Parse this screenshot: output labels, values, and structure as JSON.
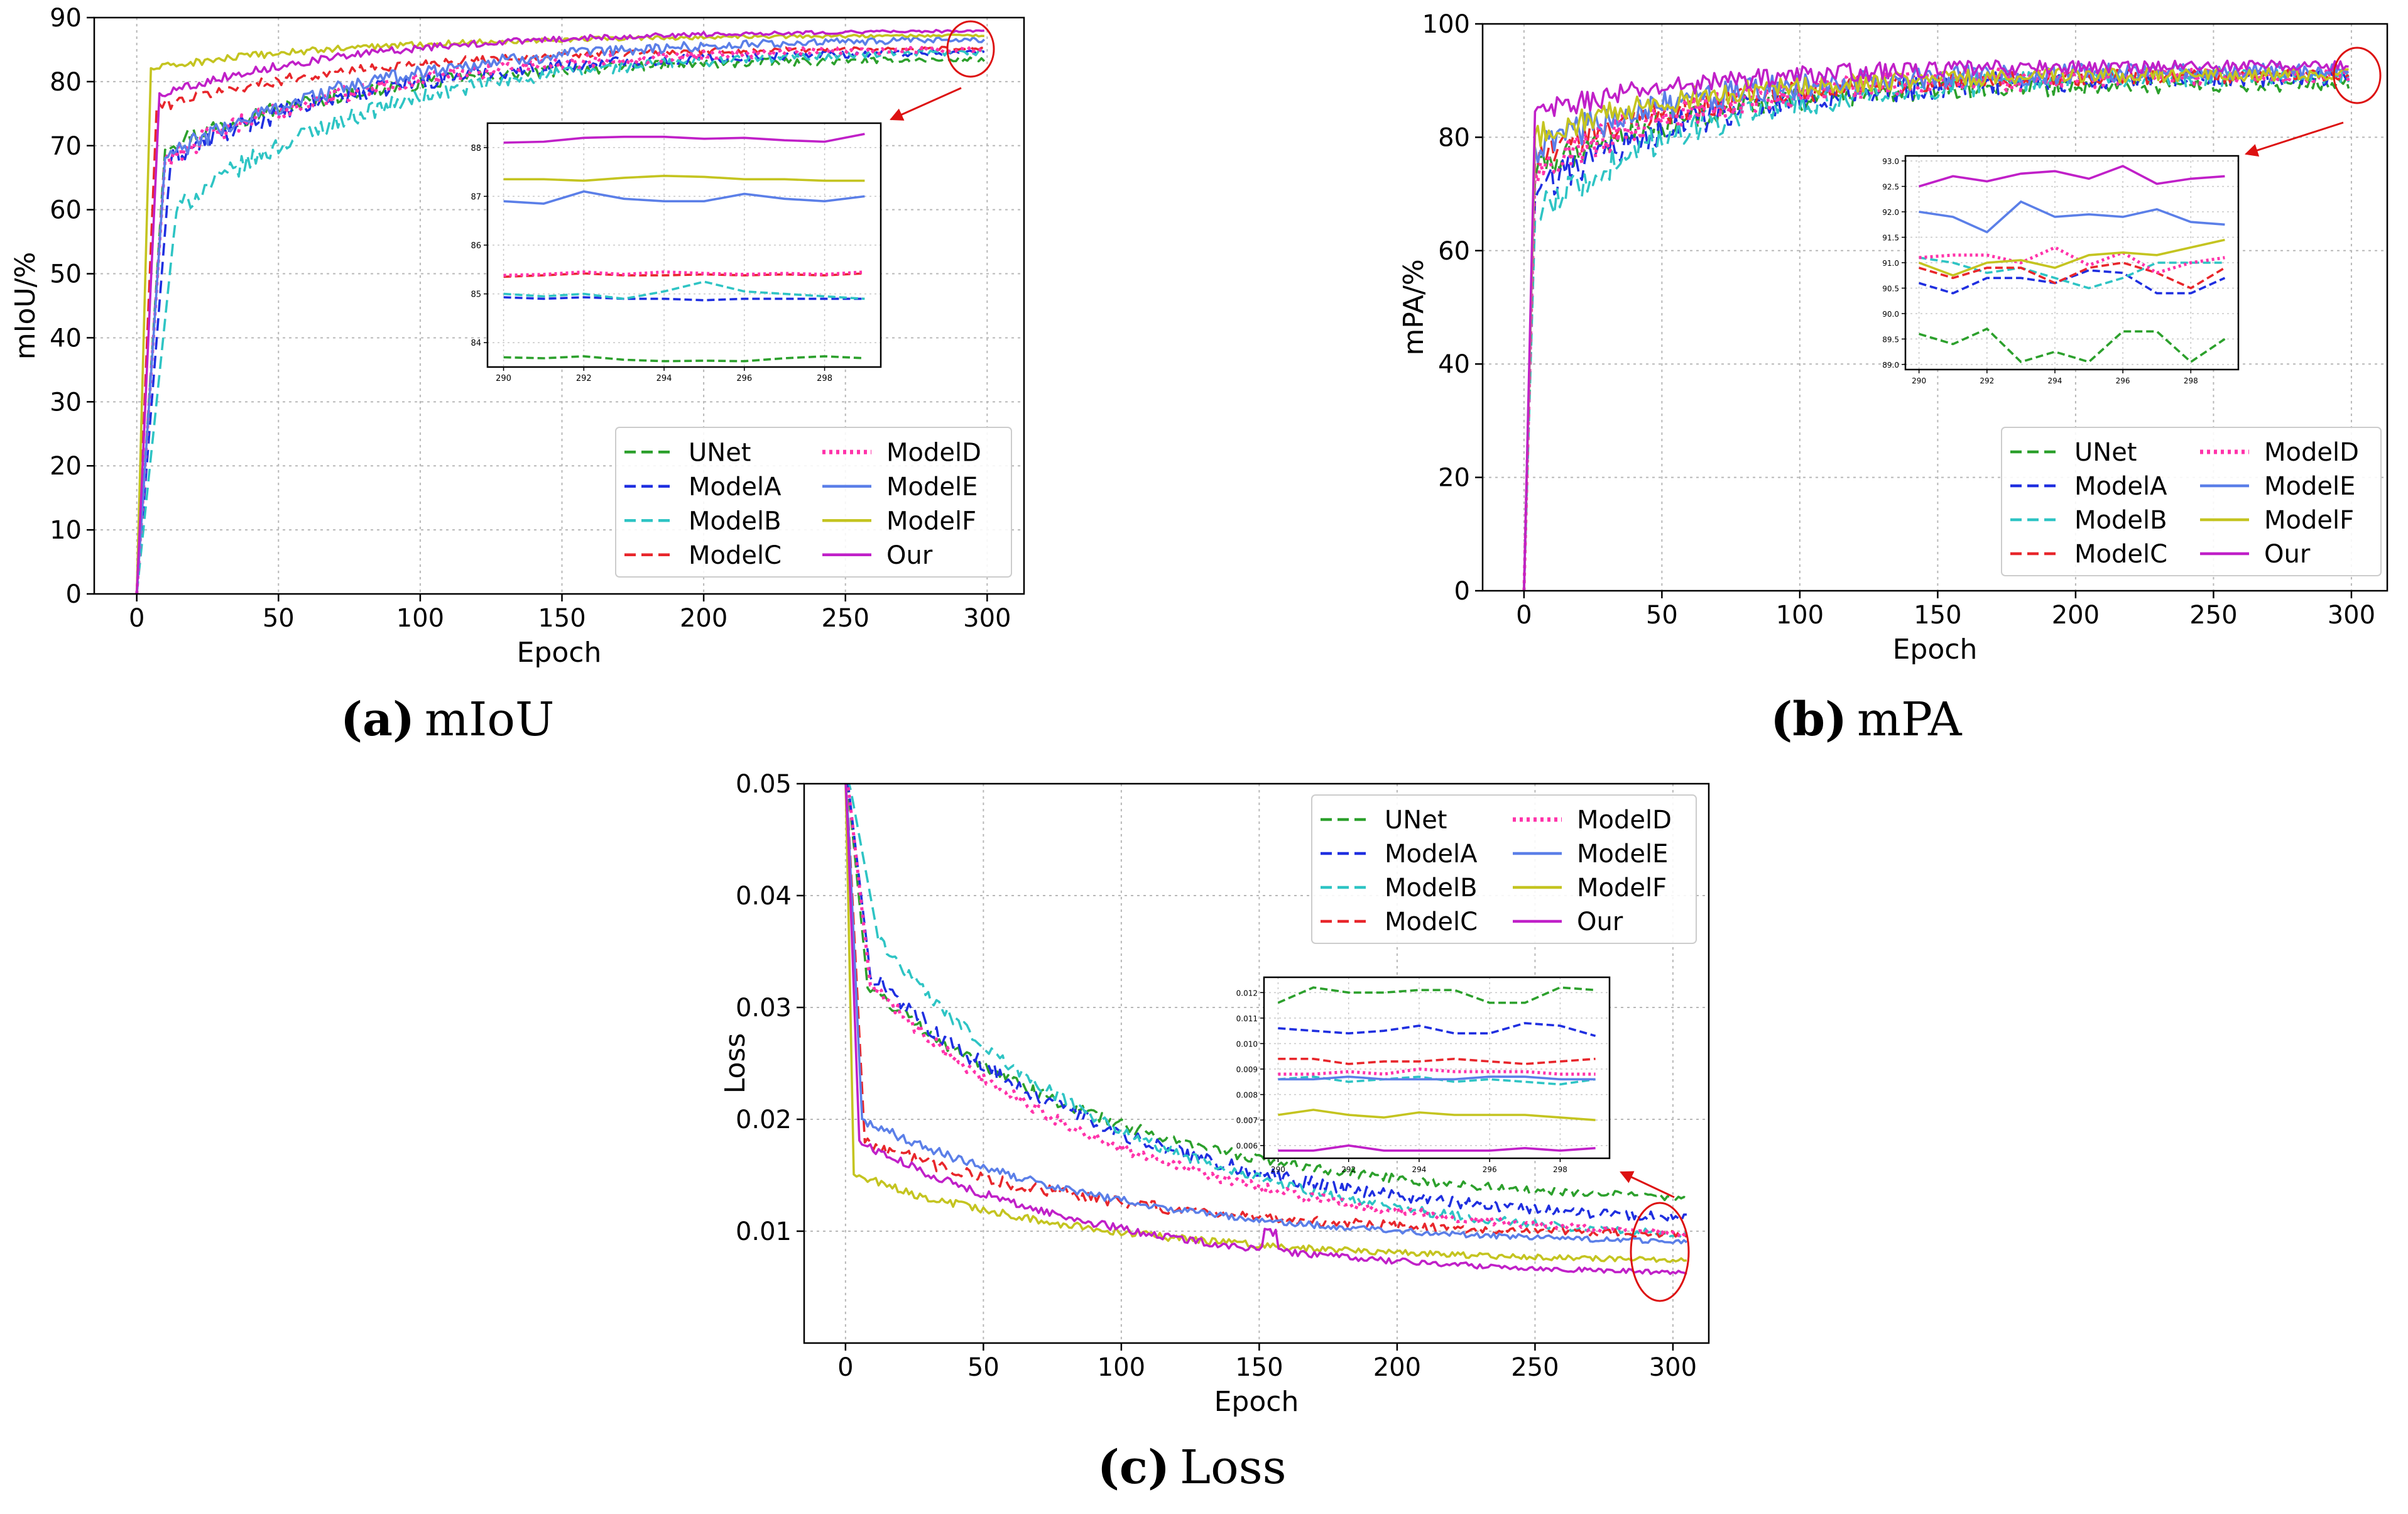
{
  "palette": {
    "UNet": "#2ca02c",
    "ModelA": "#1f2fe0",
    "ModelB": "#2ec4c4",
    "ModelC": "#e8262b",
    "ModelD": "#ff33aa",
    "ModelE": "#5b7fe8",
    "ModelF": "#c4c420",
    "Our": "#c020c8",
    "highlight": "#dd1111"
  },
  "legend_left_col": [
    "UNet",
    "ModelA",
    "ModelB",
    "ModelC"
  ],
  "legend_right_col": [
    "ModelD",
    "ModelE",
    "ModelF",
    "Our"
  ],
  "chart_data": [
    {
      "id": "a",
      "type": "line",
      "caption_letter": "(a)",
      "caption_text": "mIoU",
      "xlabel": "Epoch",
      "ylabel": "mIoU/%",
      "xlim": [
        -15,
        313
      ],
      "ylim": [
        0,
        90
      ],
      "xticks": [
        0,
        50,
        100,
        150,
        200,
        250,
        300
      ],
      "yticks": [
        0,
        10,
        20,
        30,
        40,
        50,
        60,
        70,
        80,
        90
      ],
      "series_final": [
        {
          "name": "UNet",
          "value": 83.7
        },
        {
          "name": "ModelA",
          "value": 84.9
        },
        {
          "name": "ModelB",
          "value": 85.0
        },
        {
          "name": "ModelC",
          "value": 85.4
        },
        {
          "name": "ModelD",
          "value": 85.4
        },
        {
          "name": "ModelE",
          "value": 86.9
        },
        {
          "name": "ModelF",
          "value": 87.3
        },
        {
          "name": "Our",
          "value": 88.1
        }
      ],
      "inset": {
        "xlim": [
          289.6,
          299.4
        ],
        "ylim": [
          83.5,
          88.5
        ],
        "xticks": [
          290,
          292,
          294,
          296,
          298
        ],
        "yticks": [
          84,
          85,
          86,
          87,
          88
        ],
        "x": [
          290,
          291,
          292,
          293,
          294,
          295,
          296,
          297,
          298,
          299
        ],
        "series": [
          {
            "name": "UNet",
            "values": [
              83.7,
              83.68,
              83.72,
              83.65,
              83.62,
              83.63,
              83.62,
              83.68,
              83.72,
              83.68
            ]
          },
          {
            "name": "ModelA",
            "values": [
              84.93,
              84.9,
              84.93,
              84.9,
              84.9,
              84.87,
              84.9,
              84.9,
              84.9,
              84.9
            ]
          },
          {
            "name": "ModelB",
            "values": [
              85.0,
              84.95,
              85.0,
              84.9,
              85.05,
              85.25,
              85.05,
              85.0,
              84.95,
              84.9
            ]
          },
          {
            "name": "ModelC",
            "values": [
              85.35,
              85.38,
              85.42,
              85.38,
              85.38,
              85.4,
              85.38,
              85.4,
              85.38,
              85.42
            ]
          },
          {
            "name": "ModelD",
            "values": [
              85.38,
              85.4,
              85.45,
              85.4,
              85.45,
              85.42,
              85.4,
              85.42,
              85.4,
              85.45
            ]
          },
          {
            "name": "ModelE",
            "values": [
              86.9,
              86.85,
              87.1,
              86.95,
              86.9,
              86.9,
              87.05,
              86.95,
              86.9,
              87.0
            ]
          },
          {
            "name": "ModelF",
            "values": [
              87.35,
              87.35,
              87.32,
              87.38,
              87.42,
              87.4,
              87.35,
              87.35,
              87.32,
              87.32
            ]
          },
          {
            "name": "Our",
            "values": [
              88.1,
              88.12,
              88.2,
              88.22,
              88.22,
              88.18,
              88.2,
              88.15,
              88.12,
              88.28
            ]
          }
        ]
      }
    },
    {
      "id": "b",
      "type": "line",
      "caption_letter": "(b)",
      "caption_text": "mPA",
      "xlabel": "Epoch",
      "ylabel": "mPA/%",
      "xlim": [
        -15,
        313
      ],
      "ylim": [
        0,
        100
      ],
      "xticks": [
        0,
        50,
        100,
        150,
        200,
        250,
        300
      ],
      "yticks": [
        0,
        20,
        40,
        60,
        80,
        100
      ],
      "series_final": [
        {
          "name": "UNet",
          "value": 89.5
        },
        {
          "name": "ModelA",
          "value": 90.7
        },
        {
          "name": "ModelB",
          "value": 91.0
        },
        {
          "name": "ModelC",
          "value": 91.0
        },
        {
          "name": "ModelD",
          "value": 91.1
        },
        {
          "name": "ModelE",
          "value": 91.7
        },
        {
          "name": "ModelF",
          "value": 91.2
        },
        {
          "name": "Our",
          "value": 92.7
        }
      ],
      "inset": {
        "xlim": [
          289.6,
          299.4
        ],
        "ylim": [
          88.9,
          93.1
        ],
        "xticks": [
          290,
          292,
          294,
          296,
          298
        ],
        "yticks": [
          89.0,
          89.5,
          90.0,
          90.5,
          91.0,
          91.5,
          92.0,
          92.5,
          93.0
        ],
        "x": [
          290,
          291,
          292,
          293,
          294,
          295,
          296,
          297,
          298,
          299
        ],
        "series": [
          {
            "name": "UNet",
            "values": [
              89.6,
              89.4,
              89.7,
              89.05,
              89.25,
              89.05,
              89.65,
              89.65,
              89.05,
              89.5
            ]
          },
          {
            "name": "ModelA",
            "values": [
              90.6,
              90.4,
              90.7,
              90.7,
              90.6,
              90.85,
              90.8,
              90.4,
              90.4,
              90.7
            ]
          },
          {
            "name": "ModelB",
            "values": [
              91.1,
              91.0,
              90.8,
              90.9,
              90.7,
              90.5,
              90.7,
              91.0,
              91.0,
              91.0
            ]
          },
          {
            "name": "ModelC",
            "values": [
              90.9,
              90.7,
              90.9,
              90.9,
              90.6,
              90.9,
              91.0,
              90.8,
              90.5,
              90.9
            ]
          },
          {
            "name": "ModelD",
            "values": [
              91.1,
              91.15,
              91.15,
              91.0,
              91.3,
              90.95,
              91.2,
              90.8,
              91.0,
              91.1
            ]
          },
          {
            "name": "ModelE",
            "values": [
              92.0,
              91.9,
              91.6,
              92.2,
              91.9,
              91.95,
              91.9,
              92.05,
              91.8,
              91.75
            ]
          },
          {
            "name": "ModelF",
            "values": [
              91.0,
              90.75,
              91.0,
              91.05,
              90.9,
              91.15,
              91.2,
              91.15,
              91.3,
              91.45
            ]
          },
          {
            "name": "Our",
            "values": [
              92.5,
              92.7,
              92.6,
              92.75,
              92.8,
              92.65,
              92.9,
              92.55,
              92.65,
              92.7
            ]
          }
        ]
      }
    },
    {
      "id": "c",
      "type": "line",
      "caption_letter": "(c)",
      "caption_text": "Loss",
      "xlabel": "Epoch",
      "ylabel": "Loss",
      "xlim": [
        -15,
        313
      ],
      "ylim": [
        0.0,
        0.05
      ],
      "xticks": [
        0,
        50,
        100,
        150,
        200,
        250,
        300
      ],
      "yticks": [
        0.01,
        0.02,
        0.03,
        0.04,
        0.05
      ],
      "ytick_labels": [
        "0.01",
        "0.02",
        "0.03",
        "0.04",
        "0.05"
      ],
      "series_final": [
        {
          "name": "UNet",
          "value": 0.0122
        },
        {
          "name": "ModelA",
          "value": 0.0103
        },
        {
          "name": "ModelB",
          "value": 0.0086
        },
        {
          "name": "ModelC",
          "value": 0.0094
        },
        {
          "name": "ModelD",
          "value": 0.0089
        },
        {
          "name": "ModelE",
          "value": 0.0086
        },
        {
          "name": "ModelF",
          "value": 0.0071
        },
        {
          "name": "Our",
          "value": 0.0058
        }
      ],
      "inset": {
        "xlim": [
          289.6,
          299.4
        ],
        "ylim": [
          0.0055,
          0.0126
        ],
        "xticks": [
          290,
          292,
          294,
          296,
          298
        ],
        "yticks": [
          0.006,
          0.007,
          0.008,
          0.009,
          0.01,
          0.011,
          0.012
        ],
        "ytick_labels": [
          "0.006",
          "0.007",
          "0.008",
          "0.009",
          "0.010",
          "0.011",
          "0.012"
        ],
        "x": [
          290,
          291,
          292,
          293,
          294,
          295,
          296,
          297,
          298,
          299
        ],
        "series": [
          {
            "name": "UNet",
            "values": [
              0.0116,
              0.0122,
              0.012,
              0.012,
              0.0121,
              0.0121,
              0.0116,
              0.0116,
              0.0122,
              0.0121
            ]
          },
          {
            "name": "ModelA",
            "values": [
              0.0106,
              0.0105,
              0.0104,
              0.0105,
              0.0107,
              0.0104,
              0.0104,
              0.0108,
              0.0107,
              0.0103
            ]
          },
          {
            "name": "ModelB",
            "values": [
              0.0086,
              0.0087,
              0.0085,
              0.0086,
              0.0087,
              0.0085,
              0.0086,
              0.0085,
              0.0084,
              0.0086
            ]
          },
          {
            "name": "ModelC",
            "values": [
              0.0094,
              0.0094,
              0.0092,
              0.0093,
              0.0093,
              0.0094,
              0.0093,
              0.0092,
              0.0093,
              0.0094
            ]
          },
          {
            "name": "ModelD",
            "values": [
              0.0088,
              0.0088,
              0.0089,
              0.0088,
              0.009,
              0.0089,
              0.0089,
              0.0089,
              0.0088,
              0.0088
            ]
          },
          {
            "name": "ModelE",
            "values": [
              0.0086,
              0.0086,
              0.0087,
              0.0086,
              0.0086,
              0.0086,
              0.0087,
              0.0087,
              0.0086,
              0.0086
            ]
          },
          {
            "name": "ModelF",
            "values": [
              0.0072,
              0.0074,
              0.0072,
              0.0071,
              0.0073,
              0.0072,
              0.0072,
              0.0072,
              0.0071,
              0.007
            ]
          },
          {
            "name": "Our",
            "values": [
              0.0058,
              0.0058,
              0.006,
              0.0058,
              0.0058,
              0.0058,
              0.0058,
              0.0059,
              0.0058,
              0.0059
            ]
          }
        ]
      }
    }
  ]
}
